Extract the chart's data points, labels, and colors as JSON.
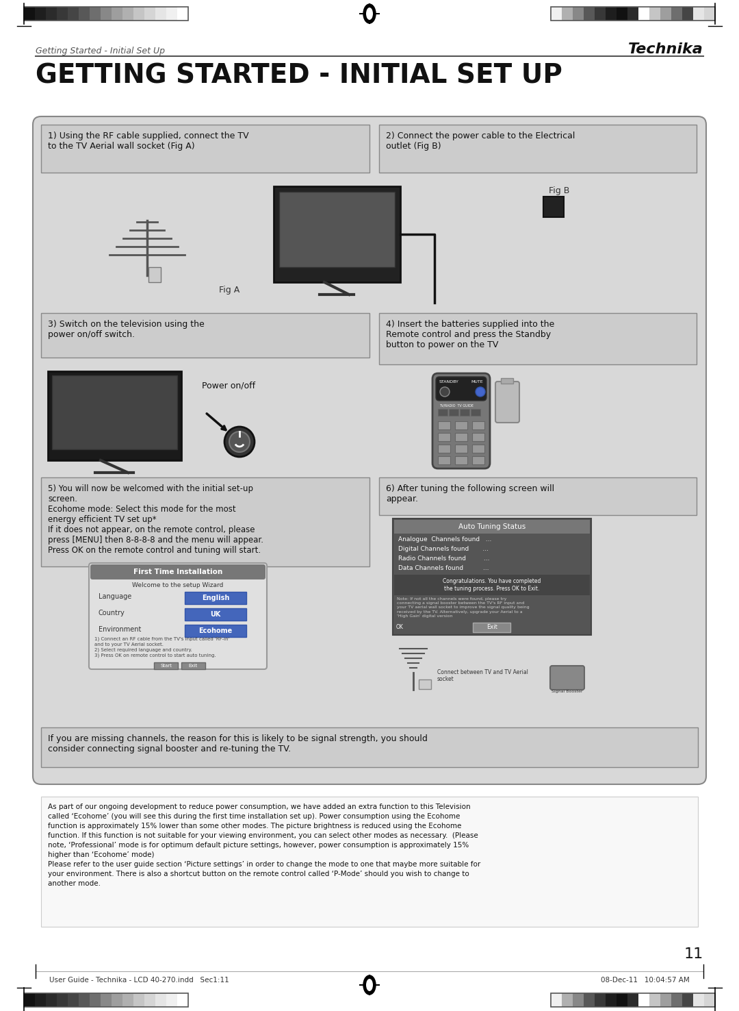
{
  "page_title": "GETTING STARTED - INITIAL SET UP",
  "header_left": "Getting Started - Initial Set Up",
  "header_right": "Technika",
  "footer_left": "User Guide - Technika - LCD 40-270.indd   Sec1:11",
  "footer_right": "08-Dec-11   10:04:57 AM",
  "page_number": "11",
  "bg_color": "#ffffff",
  "step1_title": "1) Using the RF cable supplied, connect the TV\nto the TV Aerial wall socket (Fig A)",
  "step2_title": "2) Connect the power cable to the Electrical\noutlet (Fig B)",
  "step3_title": "3) Switch on the television using the\npower on/off switch.",
  "step4_title": "4) Insert the batteries supplied into the\nRemote control and press the Standby\nbutton to power on the TV",
  "step5_title": "5) You will now be welcomed with the initial set-up\nscreen.\nEcohome mode: Select this mode for the most\nenergy efficient TV set up*\nIf it does not appear, on the remote control, please\npress [MENU] then 8-8-8-8 and the menu will appear.\nPress OK on the remote control and tuning will start.",
  "step6_title": "6) After tuning the following screen will\nappear.",
  "step7_text": "If you are missing channels, the reason for this is likely to be signal strength, you should\nconsider connecting signal booster and re-tuning the TV.",
  "bottom_text": "As part of our ongoing development to reduce power consumption, we have added an extra function to this Television\ncalled ‘Ecohome’ (you will see this during the first time installation set up). Power consumption using the Ecohome\nfunction is approximately 15% lower than some other modes. The picture brightness is reduced using the Ecohome\nfunction. If this function is not suitable for your viewing environment, you can select other modes as necessary.  (Please\nnote, ‘Professional’ mode is for optimum default picture settings, however, power consumption is approximately 15%\nhigher than ‘Ecohome’ mode)\nPlease refer to the user guide section ‘Picture settings’ in order to change the mode to one that maybe more suitable for\nyour environment. There is also a shortcut button on the remote control called ‘P-Mode’ should you wish to change to\nanother mode.",
  "power_on_off_label": "Power on/off",
  "fig_a_label": "Fig A",
  "fig_b_label": "Fig B",
  "auto_tuning_lines": [
    "Auto Tuning Status",
    "Analogue  Channels found   ...",
    "Digital Channels found       ...",
    "Radio Channels found         ...",
    "Data Channels found          ..."
  ],
  "congrats_text": "Congratulations. You have completed\nthe tuning process. Press OK to Exit.",
  "note_text": "Note: If not all the channels were found, please try\nconnecting a signal booster between the TV's RF input and\nyour TV aerial wall socket to improve the signal quality being\nreceived by the TV. Alternatively, upgrade your Aerial to a\n'High Gain' digital version",
  "fti_lines": [
    "Welcome to the setup Wizard",
    "Language",
    "English",
    "Country",
    "UK",
    "Environment",
    "Ecohome"
  ],
  "fti_footer": "1) Connect an RF cable from the TV's input called 'RF-in'\nand to your TV Aerial socket.\n2) Select required language and country.\n3) Press OK on remote control to start auto tuning.",
  "color_bars_left": [
    "#111111",
    "#1e1e1e",
    "#2b2b2b",
    "#383838",
    "#454545",
    "#585858",
    "#6e6e6e",
    "#888888",
    "#9e9e9e",
    "#b0b0b0",
    "#c5c5c5",
    "#d5d5d5",
    "#e5e5e5",
    "#f0f0f0",
    "#ffffff"
  ],
  "color_bars_right": [
    "#f0f0f0",
    "#b0b0b0",
    "#888888",
    "#585858",
    "#383838",
    "#1e1e1e",
    "#111111",
    "#2b2b2b",
    "#ffffff",
    "#c5c5c5",
    "#9e9e9e",
    "#6e6e6e",
    "#454545",
    "#e5e5e5",
    "#d5d5d5"
  ]
}
